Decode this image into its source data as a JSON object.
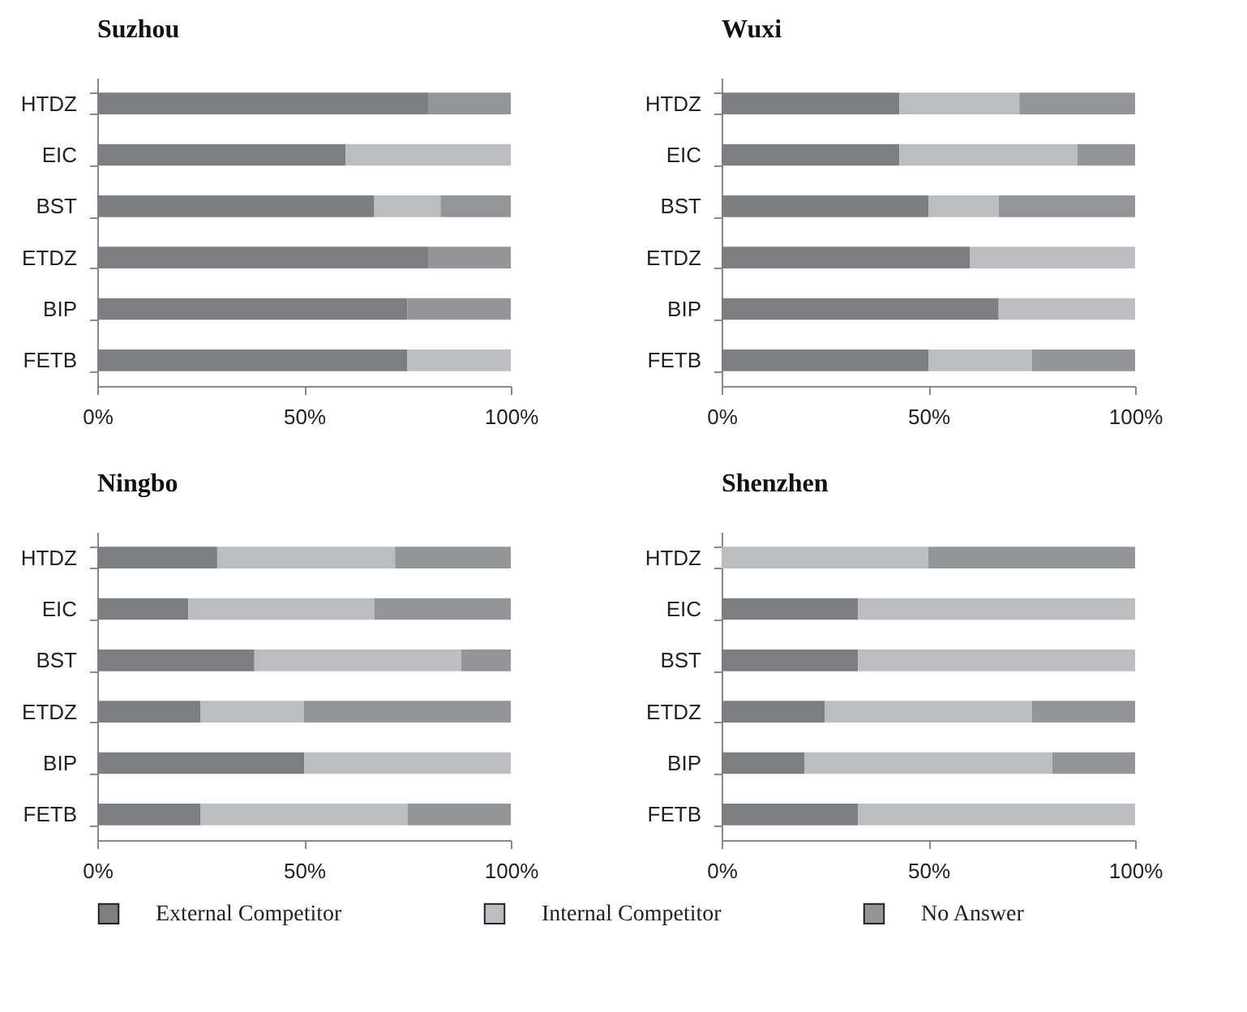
{
  "chart_data": [
    {
      "type": "bar",
      "orientation": "horizontal",
      "stacked": true,
      "title": "Suzhou",
      "categories": [
        "HTDZ",
        "EIC",
        "BST",
        "ETDZ",
        "BIP",
        "FETB"
      ],
      "xlim": [
        0,
        1
      ],
      "xticks": [
        {
          "value": 0,
          "label": "0%"
        },
        {
          "value": 0.5,
          "label": "50%"
        },
        {
          "value": 1,
          "label": "100%"
        }
      ],
      "legend": "bottom",
      "series": [
        {
          "name": "External Competitor",
          "color": "#7d7e82",
          "values": [
            0.8,
            0.6,
            0.67,
            0.8,
            0.75,
            0.75
          ]
        },
        {
          "name": "Internal Competitor",
          "color": "#bcbdc1",
          "values": [
            0,
            0.4,
            0.16,
            0,
            0,
            0.25
          ]
        },
        {
          "name": "No Answer",
          "color": "#949598",
          "values": [
            0.2,
            0,
            0.17,
            0.2,
            0.25,
            0
          ]
        }
      ]
    },
    {
      "type": "bar",
      "orientation": "horizontal",
      "stacked": true,
      "title": "Wuxi",
      "categories": [
        "HTDZ",
        "EIC",
        "BST",
        "ETDZ",
        "BIP",
        "FETB"
      ],
      "xlim": [
        0,
        1
      ],
      "xticks": [
        {
          "value": 0,
          "label": "0%"
        },
        {
          "value": 0.5,
          "label": "50%"
        },
        {
          "value": 1,
          "label": "100%"
        }
      ],
      "series": [
        {
          "color": "#7d7e82",
          "values": [
            0.43,
            0.43,
            0.5,
            0.6,
            0.67,
            0.5
          ]
        },
        {
          "color": "#bcbdc1",
          "values": [
            0.29,
            0.43,
            0.17,
            0.4,
            0.33,
            0.25
          ]
        },
        {
          "color": "#949598",
          "values": [
            0.28,
            0.14,
            0.33,
            0,
            0,
            0.25
          ]
        }
      ]
    },
    {
      "type": "bar",
      "orientation": "horizontal",
      "stacked": true,
      "title": "Ningbo",
      "categories": [
        "HTDZ",
        "EIC",
        "BST",
        "ETDZ",
        "BIP",
        "FETB"
      ],
      "xlim": [
        0,
        1
      ],
      "xticks": [
        {
          "value": 0,
          "label": "0%"
        },
        {
          "value": 0.5,
          "label": "50%"
        },
        {
          "value": 1,
          "label": "100%"
        }
      ],
      "series": [
        {
          "color": "#7d7e82",
          "values": [
            0.29,
            0.22,
            0.38,
            0.25,
            0.5,
            0.25
          ]
        },
        {
          "color": "#bcbdc1",
          "values": [
            0.43,
            0.45,
            0.5,
            0.25,
            0.5,
            0.5
          ]
        },
        {
          "color": "#949598",
          "values": [
            0.28,
            0.33,
            0.12,
            0.5,
            0,
            0.25
          ]
        }
      ]
    },
    {
      "type": "bar",
      "orientation": "horizontal",
      "stacked": true,
      "title": "Shenzhen",
      "categories": [
        "HTDZ",
        "EIC",
        "BST",
        "ETDZ",
        "BIP",
        "FETB"
      ],
      "xlim": [
        0,
        1
      ],
      "xticks": [
        {
          "value": 0,
          "label": "0%"
        },
        {
          "value": 0.5,
          "label": "50%"
        },
        {
          "value": 1,
          "label": "100%"
        }
      ],
      "series": [
        {
          "color": "#7d7e82",
          "values": [
            0,
            0.33,
            0.33,
            0.25,
            0.2,
            0.33
          ]
        },
        {
          "color": "#bcbdc1",
          "values": [
            0.5,
            0.67,
            0.67,
            0.5,
            0.6,
            0.67
          ]
        },
        {
          "color": "#949598",
          "values": [
            0.5,
            0,
            0,
            0.25,
            0.2,
            0
          ]
        }
      ]
    }
  ]
}
